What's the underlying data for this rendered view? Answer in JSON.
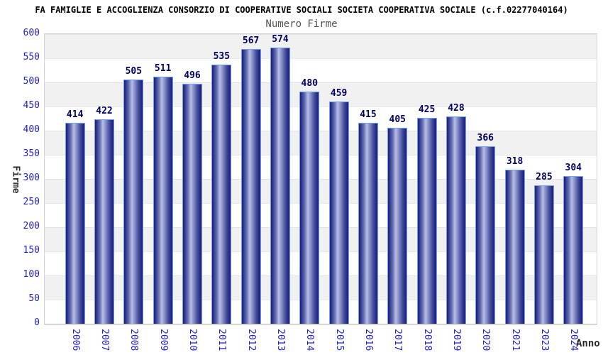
{
  "title": "FA FAMIGLIE E ACCOGLIENZA CONSORZIO DI COOPERATIVE SOCIALI SOCIETA COOPERATIVA SOCIALE (c.f.02277040164)",
  "subtitle": "Numero Firme",
  "chart_data": {
    "type": "bar",
    "title": "Numero Firme",
    "xlabel": "Anno",
    "ylabel": "Firme",
    "categories": [
      "2006",
      "2007",
      "2008",
      "2009",
      "2010",
      "2011",
      "2012",
      "2013",
      "2014",
      "2015",
      "2016",
      "2017",
      "2018",
      "2019",
      "2020",
      "2021",
      "2023",
      "2024"
    ],
    "values": [
      414,
      422,
      505,
      511,
      496,
      535,
      567,
      574,
      480,
      459,
      415,
      405,
      425,
      428,
      366,
      318,
      285,
      304
    ],
    "ylim": [
      0,
      600
    ],
    "ytick_step": 50,
    "grid": "horizontal-bands-every-50",
    "legend_position": "none",
    "value_labels_shown": true,
    "x_tick_rotation_deg": 90
  },
  "colors": {
    "title_color": "#000000",
    "subtitle_color": "#555555",
    "tick_label": "#2222cc",
    "value_label": "#000066",
    "axis_title_color": "#2b2b2b",
    "bar_border": "#74a2f2",
    "bar_dark": "#1a1f7e",
    "bar_light": "#b9bfe4",
    "band_gray": "#f1f1f1",
    "band_white": "#ffffff"
  }
}
